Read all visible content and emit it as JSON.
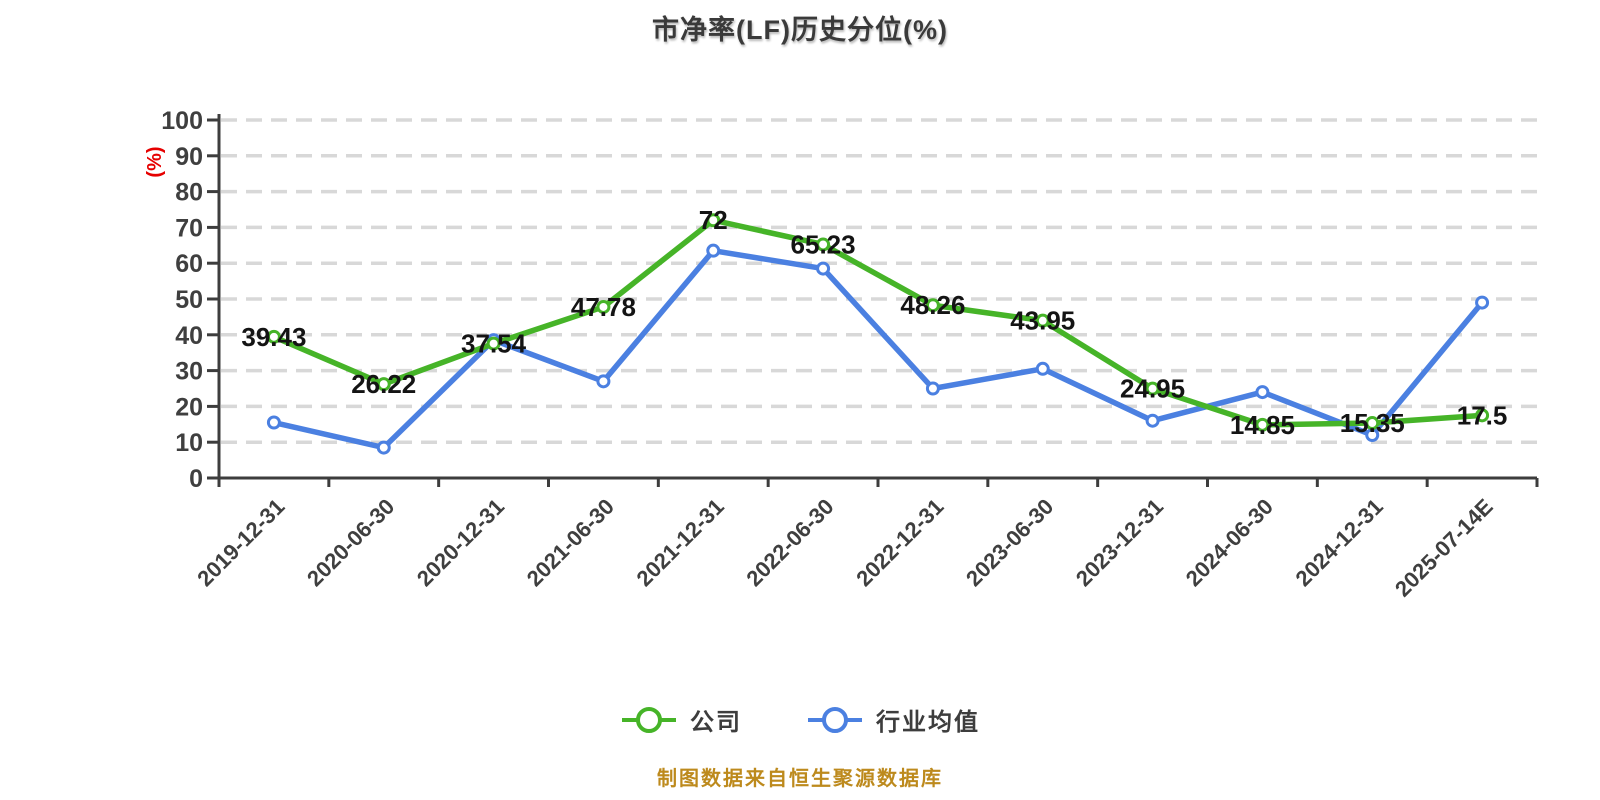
{
  "title": "市净率(LF)历史分位(%)",
  "y_axis_name": "(%)",
  "footer_note": "制图数据来自恒生聚源数据库",
  "chart_data": {
    "type": "line",
    "title": "市净率(LF)历史分位(%)",
    "ylabel": "(%)",
    "ylim": [
      0,
      100
    ],
    "y_tick_interval": 10,
    "y_ticks": [
      0,
      10,
      20,
      30,
      40,
      50,
      60,
      70,
      80,
      90,
      100
    ],
    "grid": "horizontal-dashed",
    "legend_position": "bottom",
    "categories": [
      "2019-12-31",
      "2020-06-30",
      "2020-12-31",
      "2021-06-30",
      "2021-12-31",
      "2022-06-30",
      "2022-12-31",
      "2023-06-30",
      "2023-12-31",
      "2024-06-30",
      "2024-12-31",
      "2025-07-14E"
    ],
    "series": [
      {
        "name": "行业均值",
        "color": "#4b80e1",
        "values": [
          15.5,
          8.5,
          38.5,
          27,
          63.5,
          58.5,
          25,
          30.5,
          16,
          24,
          12,
          49
        ],
        "show_labels": false
      },
      {
        "name": "公司",
        "color": "#46b428",
        "values": [
          39.43,
          26.22,
          37.54,
          47.78,
          72,
          65.23,
          48.26,
          43.95,
          24.95,
          14.85,
          15.35,
          17.5
        ],
        "labels": [
          "39.43",
          "26.22",
          "37.54",
          "47.78",
          "72",
          "65.23",
          "48.26",
          "43.95",
          "24.95",
          "14.85",
          "15.35",
          "17.5"
        ],
        "show_labels": true
      }
    ],
    "colors": {
      "axis": "#3d3d3d",
      "gridline": "#d8d8d8",
      "tick_label": "#3f3f3f",
      "data_label": "#141414",
      "y_axis_name": "#e60000",
      "footer": "#bd8a1d",
      "marker_fill": "#ffffff"
    }
  },
  "legend": {
    "items": [
      {
        "label": "公司",
        "series_index": 1
      },
      {
        "label": "行业均值",
        "series_index": 0
      }
    ]
  }
}
